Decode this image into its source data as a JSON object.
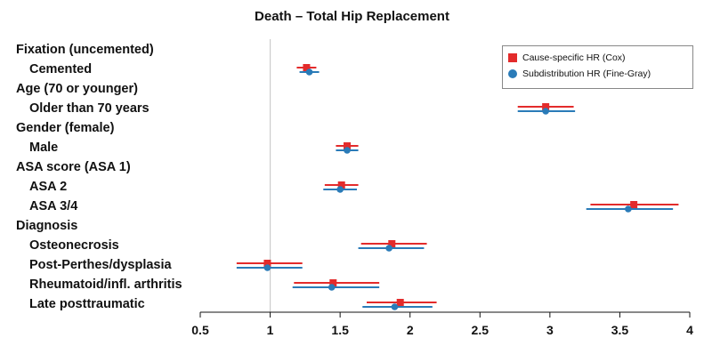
{
  "chart_data": {
    "type": "forest",
    "title": "Death – Total Hip Replacement",
    "xlim": [
      0.5,
      4
    ],
    "xticks": [
      0.5,
      1,
      1.5,
      2,
      2.5,
      3,
      3.5,
      4
    ],
    "xtick_labels": [
      "0.5",
      "1",
      "1.5",
      "2",
      "2.5",
      "3",
      "3.5",
      "4"
    ],
    "reference_line": 1,
    "legend_position": "top-right",
    "series": [
      {
        "name": "Cause-specific HR (Cox)",
        "marker": "square",
        "color": "#e32b2b"
      },
      {
        "name": "Subdistribution HR (Fine-Gray)",
        "marker": "circle",
        "color": "#2a7bb8"
      }
    ],
    "rows": [
      {
        "label": "Fixation (uncemented)",
        "type": "group"
      },
      {
        "label": "Cemented",
        "type": "item",
        "cox": {
          "hr": 1.26,
          "lo": 1.19,
          "hi": 1.33
        },
        "fg": {
          "hr": 1.28,
          "lo": 1.21,
          "hi": 1.35
        }
      },
      {
        "label": "Age (70 or younger)",
        "type": "group"
      },
      {
        "label": "Older than 70 years",
        "type": "item",
        "cox": {
          "hr": 2.97,
          "lo": 2.77,
          "hi": 3.17
        },
        "fg": {
          "hr": 2.97,
          "lo": 2.77,
          "hi": 3.18
        }
      },
      {
        "label": "Gender (female)",
        "type": "group"
      },
      {
        "label": "Male",
        "type": "item",
        "cox": {
          "hr": 1.55,
          "lo": 1.47,
          "hi": 1.63
        },
        "fg": {
          "hr": 1.55,
          "lo": 1.47,
          "hi": 1.63
        }
      },
      {
        "label": "ASA score (ASA 1)",
        "type": "group"
      },
      {
        "label": "ASA 2",
        "type": "item",
        "cox": {
          "hr": 1.51,
          "lo": 1.39,
          "hi": 1.63
        },
        "fg": {
          "hr": 1.5,
          "lo": 1.38,
          "hi": 1.62
        }
      },
      {
        "label": "ASA 3/4",
        "type": "item",
        "cox": {
          "hr": 3.6,
          "lo": 3.29,
          "hi": 3.92
        },
        "fg": {
          "hr": 3.56,
          "lo": 3.26,
          "hi": 3.88
        }
      },
      {
        "label": "Diagnosis",
        "type": "group"
      },
      {
        "label": "Osteonecrosis",
        "type": "item",
        "cox": {
          "hr": 1.87,
          "lo": 1.65,
          "hi": 2.12
        },
        "fg": {
          "hr": 1.85,
          "lo": 1.63,
          "hi": 2.1
        }
      },
      {
        "label": "Post-Perthes/dysplasia",
        "type": "item",
        "cox": {
          "hr": 0.98,
          "lo": 0.76,
          "hi": 1.23
        },
        "fg": {
          "hr": 0.98,
          "lo": 0.76,
          "hi": 1.23
        }
      },
      {
        "label": "Rheumatoid/infl. arthritis",
        "type": "item",
        "cox": {
          "hr": 1.45,
          "lo": 1.17,
          "hi": 1.78
        },
        "fg": {
          "hr": 1.44,
          "lo": 1.16,
          "hi": 1.78
        }
      },
      {
        "label": "Late posttraumatic",
        "type": "item",
        "cox": {
          "hr": 1.93,
          "lo": 1.69,
          "hi": 2.19
        },
        "fg": {
          "hr": 1.89,
          "lo": 1.66,
          "hi": 2.16
        }
      }
    ]
  }
}
